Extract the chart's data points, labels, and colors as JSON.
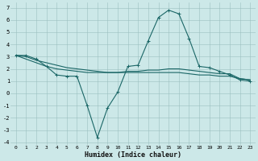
{
  "xlabel": "Humidex (Indice chaleur)",
  "bg_color": "#cce8e8",
  "grid_color": "#9bbfbf",
  "line_color": "#1a6666",
  "xlim": [
    -0.5,
    23.5
  ],
  "ylim": [
    -4.2,
    7.4
  ],
  "xticks": [
    0,
    1,
    2,
    3,
    4,
    5,
    6,
    7,
    8,
    9,
    10,
    11,
    12,
    13,
    14,
    15,
    16,
    17,
    18,
    19,
    20,
    21,
    22,
    23
  ],
  "yticks": [
    -4,
    -3,
    -2,
    -1,
    0,
    1,
    2,
    3,
    4,
    5,
    6,
    7
  ],
  "series": {
    "line1_x": [
      0,
      1,
      2,
      3,
      4,
      5,
      6,
      7,
      8,
      9,
      10,
      11,
      12,
      13,
      14,
      15,
      16,
      17,
      18,
      19,
      20,
      21,
      22,
      23
    ],
    "line1_y": [
      3.1,
      3.1,
      2.8,
      2.2,
      1.5,
      1.4,
      1.4,
      -1.0,
      -3.6,
      -1.2,
      0.1,
      2.2,
      2.3,
      4.3,
      6.2,
      6.8,
      6.5,
      4.5,
      2.2,
      2.1,
      1.8,
      1.5,
      1.1,
      1.0
    ],
    "line2_x": [
      0,
      1,
      2,
      3,
      4,
      5,
      6,
      7,
      8,
      9,
      10,
      11,
      12,
      13,
      14,
      15,
      16,
      17,
      18,
      19,
      20,
      21,
      22,
      23
    ],
    "line2_y": [
      3.1,
      2.8,
      2.5,
      2.2,
      2.0,
      1.9,
      1.8,
      1.7,
      1.7,
      1.7,
      1.7,
      1.8,
      1.8,
      1.9,
      1.9,
      2.0,
      2.0,
      1.9,
      1.8,
      1.7,
      1.6,
      1.6,
      1.2,
      1.1
    ],
    "line3_x": [
      0,
      1,
      2,
      3,
      4,
      5,
      6,
      7,
      8,
      9,
      10,
      11,
      12,
      13,
      14,
      15,
      16,
      17,
      18,
      19,
      20,
      21,
      22,
      23
    ],
    "line3_y": [
      3.1,
      3.0,
      2.7,
      2.5,
      2.3,
      2.1,
      2.0,
      1.9,
      1.8,
      1.7,
      1.7,
      1.7,
      1.7,
      1.7,
      1.7,
      1.7,
      1.7,
      1.6,
      1.5,
      1.5,
      1.4,
      1.4,
      1.2,
      1.1
    ]
  }
}
